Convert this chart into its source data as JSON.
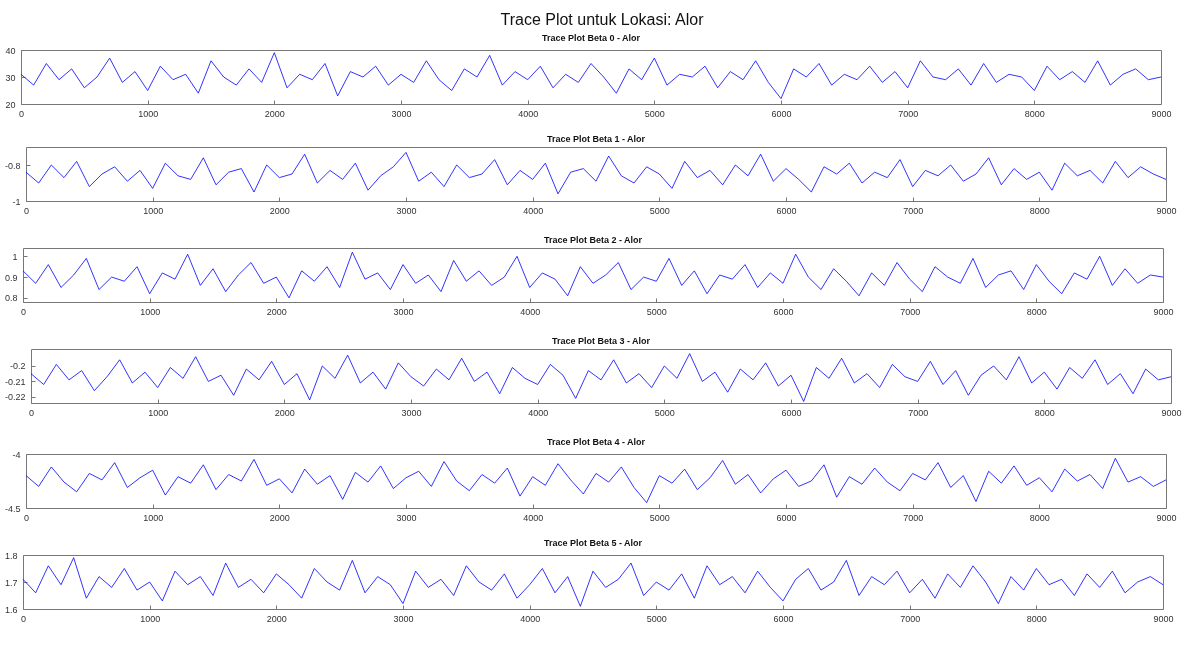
{
  "chart_data": [
    {
      "type": "line",
      "title": "Trace Plot untuk Lokasi: Alor",
      "subtitle": "Trace Plot Beta 0 - Alor",
      "x": [
        0,
        100,
        200,
        300,
        400,
        500,
        600,
        700,
        800,
        900,
        1000,
        1100,
        1200,
        1300,
        1400,
        1500,
        1600,
        1700,
        1800,
        1900,
        2000,
        2100,
        2200,
        2300,
        2400,
        2500,
        2600,
        2700,
        2800,
        2900,
        3000,
        3100,
        3200,
        3300,
        3400,
        3500,
        3600,
        3700,
        3800,
        3900,
        4000,
        4100,
        4200,
        4300,
        4400,
        4500,
        4600,
        4700,
        4800,
        4900,
        5000,
        5100,
        5200,
        5300,
        5400,
        5500,
        5600,
        5700,
        5800,
        5900,
        6000,
        6100,
        6200,
        6300,
        6400,
        6500,
        6600,
        6700,
        6800,
        6900,
        7000,
        7100,
        7200,
        7300,
        7400,
        7500,
        7600,
        7700,
        7800,
        7900,
        8000,
        8100,
        8200,
        8300,
        8400,
        8500,
        8600,
        8700,
        8800,
        8900,
        9000
      ],
      "xlim": [
        0,
        9000
      ],
      "xticks": [
        0,
        1000,
        2000,
        3000,
        4000,
        5000,
        6000,
        7000,
        8000,
        9000
      ],
      "ylim": [
        20,
        40
      ],
      "yticks": [
        20,
        30,
        40
      ],
      "series": [
        {
          "color": "#0000ff",
          "values": [
            31,
            27,
            35,
            29,
            33,
            26,
            30,
            37,
            28,
            32,
            25,
            34,
            29,
            31,
            24,
            36,
            30,
            27,
            33,
            28,
            39,
            26,
            31,
            29,
            35,
            23,
            32,
            30,
            34,
            27,
            31,
            28,
            36,
            29,
            25,
            33,
            30,
            38,
            27,
            32,
            29,
            34,
            26,
            31,
            28,
            35,
            30,
            24,
            33,
            29,
            37,
            27,
            31,
            30,
            34,
            26,
            32,
            29,
            36,
            28,
            22,
            33,
            30,
            35,
            27,
            31,
            29,
            34,
            28,
            32,
            26,
            36,
            30,
            29,
            33,
            27,
            35,
            28,
            31,
            30,
            25,
            34,
            29,
            32,
            28,
            36,
            27,
            31,
            33,
            29,
            30
          ]
        }
      ]
    },
    {
      "type": "line",
      "title": "Trace Plot Beta 1 - Alor",
      "x": [
        0,
        100,
        200,
        300,
        400,
        500,
        600,
        700,
        800,
        900,
        1000,
        1100,
        1200,
        1300,
        1400,
        1500,
        1600,
        1700,
        1800,
        1900,
        2000,
        2100,
        2200,
        2300,
        2400,
        2500,
        2600,
        2700,
        2800,
        2900,
        3000,
        3100,
        3200,
        3300,
        3400,
        3500,
        3600,
        3700,
        3800,
        3900,
        4000,
        4100,
        4200,
        4300,
        4400,
        4500,
        4600,
        4700,
        4800,
        4900,
        5000,
        5100,
        5200,
        5300,
        5400,
        5500,
        5600,
        5700,
        5800,
        5900,
        6000,
        6100,
        6200,
        6300,
        6400,
        6500,
        6600,
        6700,
        6800,
        6900,
        7000,
        7100,
        7200,
        7300,
        7400,
        7500,
        7600,
        7700,
        7800,
        7900,
        8000,
        8100,
        8200,
        8300,
        8400,
        8500,
        8600,
        8700,
        8800,
        8900,
        9000
      ],
      "xlim": [
        0,
        9000
      ],
      "xticks": [
        0,
        1000,
        2000,
        3000,
        4000,
        5000,
        6000,
        7000,
        8000,
        9000
      ],
      "ylim": [
        -1,
        -0.7
      ],
      "yticks": [
        -1,
        -0.8
      ],
      "series": [
        {
          "color": "#0000ff",
          "values": [
            -0.84,
            -0.9,
            -0.8,
            -0.87,
            -0.78,
            -0.92,
            -0.85,
            -0.81,
            -0.89,
            -0.83,
            -0.93,
            -0.79,
            -0.86,
            -0.88,
            -0.76,
            -0.91,
            -0.84,
            -0.82,
            -0.95,
            -0.8,
            -0.87,
            -0.85,
            -0.74,
            -0.9,
            -0.83,
            -0.88,
            -0.79,
            -0.94,
            -0.86,
            -0.81,
            -0.73,
            -0.89,
            -0.84,
            -0.92,
            -0.8,
            -0.87,
            -0.85,
            -0.77,
            -0.91,
            -0.83,
            -0.88,
            -0.79,
            -0.96,
            -0.84,
            -0.82,
            -0.89,
            -0.75,
            -0.86,
            -0.9,
            -0.81,
            -0.85,
            -0.93,
            -0.78,
            -0.87,
            -0.83,
            -0.91,
            -0.8,
            -0.86,
            -0.74,
            -0.89,
            -0.82,
            -0.88,
            -0.95,
            -0.81,
            -0.85,
            -0.79,
            -0.9,
            -0.84,
            -0.87,
            -0.77,
            -0.92,
            -0.83,
            -0.86,
            -0.8,
            -0.89,
            -0.85,
            -0.76,
            -0.91,
            -0.82,
            -0.88,
            -0.84,
            -0.94,
            -0.79,
            -0.86,
            -0.83,
            -0.9,
            -0.78,
            -0.87,
            -0.81,
            -0.85,
            -0.88
          ]
        }
      ]
    },
    {
      "type": "line",
      "title": "Trace Plot Beta 2 - Alor",
      "x": [
        0,
        100,
        200,
        300,
        400,
        500,
        600,
        700,
        800,
        900,
        1000,
        1100,
        1200,
        1300,
        1400,
        1500,
        1600,
        1700,
        1800,
        1900,
        2000,
        2100,
        2200,
        2300,
        2400,
        2500,
        2600,
        2700,
        2800,
        2900,
        3000,
        3100,
        3200,
        3300,
        3400,
        3500,
        3600,
        3700,
        3800,
        3900,
        4000,
        4100,
        4200,
        4300,
        4400,
        4500,
        4600,
        4700,
        4800,
        4900,
        5000,
        5100,
        5200,
        5300,
        5400,
        5500,
        5600,
        5700,
        5800,
        5900,
        6000,
        6100,
        6200,
        6300,
        6400,
        6500,
        6600,
        6700,
        6800,
        6900,
        7000,
        7100,
        7200,
        7300,
        7400,
        7500,
        7600,
        7700,
        7800,
        7900,
        8000,
        8100,
        8200,
        8300,
        8400,
        8500,
        8600,
        8700,
        8800,
        8900,
        9000
      ],
      "xlim": [
        0,
        9000
      ],
      "xticks": [
        0,
        1000,
        2000,
        3000,
        4000,
        5000,
        6000,
        7000,
        8000,
        9000
      ],
      "ylim": [
        0.78,
        1.04
      ],
      "yticks": [
        0.8,
        0.9,
        1
      ],
      "series": [
        {
          "color": "#0000ff",
          "values": [
            0.93,
            0.87,
            0.96,
            0.85,
            0.91,
            0.99,
            0.84,
            0.9,
            0.88,
            0.95,
            0.82,
            0.92,
            0.89,
            1.01,
            0.86,
            0.94,
            0.83,
            0.91,
            0.97,
            0.87,
            0.9,
            0.8,
            0.93,
            0.88,
            0.95,
            0.85,
            1.02,
            0.89,
            0.92,
            0.84,
            0.96,
            0.87,
            0.91,
            0.83,
            0.98,
            0.88,
            0.93,
            0.86,
            0.9,
            1.0,
            0.85,
            0.92,
            0.89,
            0.81,
            0.95,
            0.87,
            0.91,
            0.97,
            0.84,
            0.9,
            0.88,
            0.99,
            0.86,
            0.93,
            0.82,
            0.91,
            0.89,
            0.96,
            0.85,
            0.92,
            0.87,
            1.01,
            0.9,
            0.84,
            0.94,
            0.88,
            0.81,
            0.92,
            0.86,
            0.97,
            0.89,
            0.83,
            0.95,
            0.9,
            0.87,
            0.99,
            0.85,
            0.91,
            0.93,
            0.84,
            0.96,
            0.88,
            0.82,
            0.92,
            0.89,
            1.0,
            0.86,
            0.94,
            0.87,
            0.91,
            0.9
          ]
        }
      ]
    },
    {
      "type": "line",
      "title": "Trace Plot Beta 3 - Alor",
      "x": [
        0,
        100,
        200,
        300,
        400,
        500,
        600,
        700,
        800,
        900,
        1000,
        1100,
        1200,
        1300,
        1400,
        1500,
        1600,
        1700,
        1800,
        1900,
        2000,
        2100,
        2200,
        2300,
        2400,
        2500,
        2600,
        2700,
        2800,
        2900,
        3000,
        3100,
        3200,
        3300,
        3400,
        3500,
        3600,
        3700,
        3800,
        3900,
        4000,
        4100,
        4200,
        4300,
        4400,
        4500,
        4600,
        4700,
        4800,
        4900,
        5000,
        5100,
        5200,
        5300,
        5400,
        5500,
        5600,
        5700,
        5800,
        5900,
        6000,
        6100,
        6200,
        6300,
        6400,
        6500,
        6600,
        6700,
        6800,
        6900,
        7000,
        7100,
        7200,
        7300,
        7400,
        7500,
        7600,
        7700,
        7800,
        7900,
        8000,
        8100,
        8200,
        8300,
        8400,
        8500,
        8600,
        8700,
        8800,
        8900,
        9000
      ],
      "xlim": [
        0,
        9000
      ],
      "xticks": [
        0,
        1000,
        2000,
        3000,
        4000,
        5000,
        6000,
        7000,
        8000,
        9000
      ],
      "ylim": [
        -0.224,
        -0.189
      ],
      "yticks": [
        -0.22,
        -0.21,
        -0.2
      ],
      "series": [
        {
          "color": "#0000ff",
          "values": [
            -0.205,
            -0.212,
            -0.199,
            -0.209,
            -0.203,
            -0.216,
            -0.207,
            -0.196,
            -0.211,
            -0.204,
            -0.214,
            -0.201,
            -0.208,
            -0.194,
            -0.21,
            -0.206,
            -0.219,
            -0.202,
            -0.209,
            -0.197,
            -0.212,
            -0.205,
            -0.222,
            -0.2,
            -0.208,
            -0.193,
            -0.211,
            -0.204,
            -0.215,
            -0.198,
            -0.207,
            -0.213,
            -0.202,
            -0.209,
            -0.195,
            -0.21,
            -0.204,
            -0.218,
            -0.201,
            -0.208,
            -0.212,
            -0.199,
            -0.206,
            -0.221,
            -0.203,
            -0.209,
            -0.196,
            -0.211,
            -0.205,
            -0.214,
            -0.2,
            -0.208,
            -0.192,
            -0.21,
            -0.204,
            -0.217,
            -0.202,
            -0.209,
            -0.198,
            -0.213,
            -0.206,
            -0.223,
            -0.201,
            -0.208,
            -0.195,
            -0.211,
            -0.205,
            -0.214,
            -0.199,
            -0.207,
            -0.21,
            -0.197,
            -0.212,
            -0.203,
            -0.219,
            -0.206,
            -0.2,
            -0.209,
            -0.194,
            -0.211,
            -0.204,
            -0.215,
            -0.201,
            -0.208,
            -0.196,
            -0.212,
            -0.205,
            -0.218,
            -0.202,
            -0.209,
            -0.207
          ]
        }
      ]
    },
    {
      "type": "line",
      "title": "Trace Plot Beta 4 - Alor",
      "x": [
        0,
        100,
        200,
        300,
        400,
        500,
        600,
        700,
        800,
        900,
        1000,
        1100,
        1200,
        1300,
        1400,
        1500,
        1600,
        1700,
        1800,
        1900,
        2000,
        2100,
        2200,
        2300,
        2400,
        2500,
        2600,
        2700,
        2800,
        2900,
        3000,
        3100,
        3200,
        3300,
        3400,
        3500,
        3600,
        3700,
        3800,
        3900,
        4000,
        4100,
        4200,
        4300,
        4400,
        4500,
        4600,
        4700,
        4800,
        4900,
        5000,
        5100,
        5200,
        5300,
        5400,
        5500,
        5600,
        5700,
        5800,
        5900,
        6000,
        6100,
        6200,
        6300,
        6400,
        6500,
        6600,
        6700,
        6800,
        6900,
        7000,
        7100,
        7200,
        7300,
        7400,
        7500,
        7600,
        7700,
        7800,
        7900,
        8000,
        8100,
        8200,
        8300,
        8400,
        8500,
        8600,
        8700,
        8800,
        8900,
        9000
      ],
      "xlim": [
        0,
        9000
      ],
      "xticks": [
        0,
        1000,
        2000,
        3000,
        4000,
        5000,
        6000,
        7000,
        8000,
        9000
      ],
      "ylim": [
        -4.5,
        -4
      ],
      "yticks": [
        -4.5,
        -4
      ],
      "series": [
        {
          "color": "#0000ff",
          "values": [
            -4.2,
            -4.3,
            -4.12,
            -4.26,
            -4.35,
            -4.18,
            -4.24,
            -4.08,
            -4.31,
            -4.22,
            -4.15,
            -4.38,
            -4.21,
            -4.27,
            -4.1,
            -4.33,
            -4.19,
            -4.25,
            -4.05,
            -4.29,
            -4.23,
            -4.36,
            -4.14,
            -4.28,
            -4.2,
            -4.42,
            -4.17,
            -4.26,
            -4.11,
            -4.32,
            -4.22,
            -4.16,
            -4.3,
            -4.07,
            -4.25,
            -4.34,
            -4.19,
            -4.27,
            -4.13,
            -4.39,
            -4.21,
            -4.29,
            -4.09,
            -4.24,
            -4.37,
            -4.18,
            -4.26,
            -4.12,
            -4.31,
            -4.45,
            -4.2,
            -4.27,
            -4.14,
            -4.33,
            -4.22,
            -4.06,
            -4.28,
            -4.19,
            -4.36,
            -4.23,
            -4.15,
            -4.3,
            -4.25,
            -4.1,
            -4.4,
            -4.21,
            -4.28,
            -4.13,
            -4.26,
            -4.34,
            -4.18,
            -4.24,
            -4.08,
            -4.31,
            -4.2,
            -4.44,
            -4.16,
            -4.27,
            -4.11,
            -4.29,
            -4.22,
            -4.35,
            -4.14,
            -4.25,
            -4.19,
            -4.32,
            -4.04,
            -4.26,
            -4.21,
            -4.3,
            -4.24
          ]
        }
      ]
    },
    {
      "type": "line",
      "title": "Trace Plot Beta 5 - Alor",
      "x": [
        0,
        100,
        200,
        300,
        400,
        500,
        600,
        700,
        800,
        900,
        1000,
        1100,
        1200,
        1300,
        1400,
        1500,
        1600,
        1700,
        1800,
        1900,
        2000,
        2100,
        2200,
        2300,
        2400,
        2500,
        2600,
        2700,
        2800,
        2900,
        3000,
        3100,
        3200,
        3300,
        3400,
        3500,
        3600,
        3700,
        3800,
        3900,
        4000,
        4100,
        4200,
        4300,
        4400,
        4500,
        4600,
        4700,
        4800,
        4900,
        5000,
        5100,
        5200,
        5300,
        5400,
        5500,
        5600,
        5700,
        5800,
        5900,
        6000,
        6100,
        6200,
        6300,
        6400,
        6500,
        6600,
        6700,
        6800,
        6900,
        7000,
        7100,
        7200,
        7300,
        7400,
        7500,
        7600,
        7700,
        7800,
        7900,
        8000,
        8100,
        8200,
        8300,
        8400,
        8500,
        8600,
        8700,
        8800,
        8900,
        9000
      ],
      "xlim": [
        0,
        9000
      ],
      "xticks": [
        0,
        1000,
        2000,
        3000,
        4000,
        5000,
        6000,
        7000,
        8000,
        9000
      ],
      "ylim": [
        1.6,
        1.8
      ],
      "yticks": [
        1.6,
        1.7,
        1.8
      ],
      "series": [
        {
          "color": "#0000ff",
          "values": [
            1.71,
            1.66,
            1.76,
            1.69,
            1.79,
            1.64,
            1.72,
            1.68,
            1.75,
            1.67,
            1.7,
            1.63,
            1.74,
            1.69,
            1.72,
            1.65,
            1.77,
            1.68,
            1.71,
            1.66,
            1.73,
            1.69,
            1.64,
            1.75,
            1.7,
            1.67,
            1.78,
            1.66,
            1.72,
            1.69,
            1.62,
            1.74,
            1.68,
            1.71,
            1.65,
            1.76,
            1.7,
            1.67,
            1.73,
            1.64,
            1.69,
            1.75,
            1.66,
            1.72,
            1.61,
            1.74,
            1.68,
            1.71,
            1.77,
            1.65,
            1.7,
            1.67,
            1.73,
            1.64,
            1.76,
            1.69,
            1.72,
            1.66,
            1.74,
            1.68,
            1.63,
            1.71,
            1.75,
            1.67,
            1.7,
            1.78,
            1.65,
            1.72,
            1.69,
            1.74,
            1.66,
            1.71,
            1.64,
            1.73,
            1.68,
            1.76,
            1.7,
            1.62,
            1.72,
            1.67,
            1.75,
            1.69,
            1.71,
            1.65,
            1.73,
            1.68,
            1.74,
            1.66,
            1.7,
            1.72,
            1.69
          ]
        }
      ]
    }
  ]
}
